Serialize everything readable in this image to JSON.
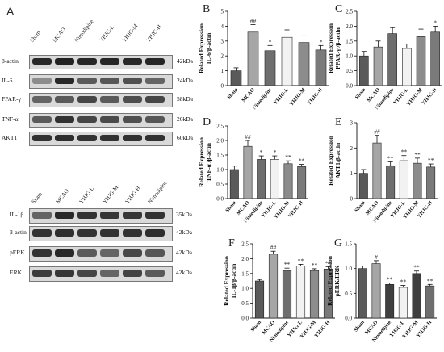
{
  "panel_labels": [
    "A",
    "B",
    "C",
    "D",
    "E",
    "F",
    "G"
  ],
  "blots": [
    {
      "lanes": [
        "Sham",
        "MCAO",
        "Nimodipine",
        "YHJG-L",
        "YHJG-M",
        "YHJG-H"
      ],
      "rows": [
        {
          "protein": "β-actin",
          "kda": "42kDa",
          "intensity": [
            0.85,
            0.88,
            0.86,
            0.86,
            0.85,
            0.86
          ]
        },
        {
          "protein": "IL-6",
          "kda": "24kDa",
          "intensity": [
            0.35,
            0.85,
            0.6,
            0.62,
            0.65,
            0.55
          ]
        },
        {
          "protein": "PPAR-γ",
          "kda": "58kDa",
          "intensity": [
            0.55,
            0.6,
            0.7,
            0.6,
            0.66,
            0.7
          ]
        },
        {
          "protein": "TNF-α",
          "kda": "26kDa",
          "intensity": [
            0.6,
            0.8,
            0.7,
            0.68,
            0.65,
            0.62
          ]
        },
        {
          "protein": "AKT1",
          "kda": "60kDa",
          "intensity": [
            0.8,
            0.82,
            0.8,
            0.8,
            0.8,
            0.8
          ]
        }
      ]
    },
    {
      "lanes": [
        "Sham",
        "MCAO",
        "YHJG-L",
        "YHJG-M",
        "YHJG-H",
        "Nimodipine"
      ],
      "rows": [
        {
          "protein": "IL-1β",
          "kda": "35kDa",
          "intensity": [
            0.55,
            0.85,
            0.8,
            0.78,
            0.78,
            0.8
          ]
        },
        {
          "protein": "β-actin",
          "kda": "42kDa",
          "intensity": [
            0.8,
            0.82,
            0.8,
            0.8,
            0.8,
            0.82
          ]
        },
        {
          "protein": "pERK",
          "kda": "42kDa",
          "intensity": [
            0.8,
            0.85,
            0.6,
            0.55,
            0.7,
            0.62
          ]
        },
        {
          "protein": "ERK",
          "kda": "42kDa",
          "intensity": [
            0.75,
            0.78,
            0.7,
            0.55,
            0.72,
            0.6
          ]
        }
      ]
    }
  ],
  "chart_data": [
    {
      "panel": "B",
      "type": "bar",
      "ylabel": "Related Expression IL-6/β-actin",
      "ylim": [
        0,
        5
      ],
      "ticks": [
        0,
        1,
        2,
        3,
        4,
        5
      ],
      "categories": [
        "Sham",
        "MCAO",
        "Nimodipine",
        "YHJG-L",
        "YHJG-M",
        "YHJG-H"
      ],
      "values": [
        1.0,
        3.6,
        2.35,
        3.25,
        2.9,
        2.4
      ],
      "errors": [
        0.2,
        0.5,
        0.35,
        0.5,
        0.45,
        0.3
      ],
      "annotations": [
        "",
        "##",
        "*",
        "",
        "",
        "*"
      ],
      "colors": [
        "#5a5a5a",
        "#a6a6a6",
        "#6e6e6e",
        "#f2f2f2",
        "#8c8c8c",
        "#7a7a7a"
      ]
    },
    {
      "panel": "C",
      "type": "bar",
      "ylabel": "Related Expression PPAR-γ /β-actin",
      "ylim": [
        0,
        2.5
      ],
      "ticks": [
        0.0,
        0.5,
        1.0,
        1.5,
        2.0,
        2.5
      ],
      "categories": [
        "Sham",
        "MCAO",
        "Nimodipine",
        "YHJG-L",
        "YHJG-M",
        "YHJG-H"
      ],
      "values": [
        1.0,
        1.3,
        1.75,
        1.25,
        1.65,
        1.8
      ],
      "errors": [
        0.15,
        0.2,
        0.2,
        0.15,
        0.25,
        0.2
      ],
      "annotations": [
        "",
        "",
        "",
        "",
        "",
        "*"
      ],
      "colors": [
        "#5a5a5a",
        "#a6a6a6",
        "#6e6e6e",
        "#f2f2f2",
        "#8c8c8c",
        "#7a7a7a"
      ]
    },
    {
      "panel": "D",
      "type": "bar",
      "ylabel": "Related Expression TNF-α /β-actin",
      "ylim": [
        0,
        2.5
      ],
      "ticks": [
        0.0,
        0.5,
        1.0,
        1.5,
        2.0,
        2.5
      ],
      "categories": [
        "Sham",
        "MCAO",
        "Nimodipine",
        "YHJG-L",
        "YHJG-M",
        "YHJG-H"
      ],
      "values": [
        1.0,
        1.8,
        1.35,
        1.35,
        1.2,
        1.1
      ],
      "errors": [
        0.12,
        0.2,
        0.12,
        0.12,
        0.1,
        0.08
      ],
      "annotations": [
        "",
        "##",
        "*",
        "*",
        "**",
        "**"
      ],
      "colors": [
        "#5a5a5a",
        "#a6a6a6",
        "#6e6e6e",
        "#f2f2f2",
        "#8c8c8c",
        "#7a7a7a"
      ]
    },
    {
      "panel": "E",
      "type": "bar",
      "ylabel": "Related Expression AKT1/β-actin",
      "ylim": [
        0,
        3
      ],
      "ticks": [
        0,
        1,
        2,
        3
      ],
      "categories": [
        "Sham",
        "MCAO",
        "Nimodipine",
        "YHJG-L",
        "YHJG-M",
        "YHJG-H"
      ],
      "values": [
        1.0,
        2.2,
        1.3,
        1.5,
        1.4,
        1.25
      ],
      "errors": [
        0.15,
        0.3,
        0.15,
        0.2,
        0.2,
        0.12
      ],
      "annotations": [
        "",
        "##",
        "**",
        "**",
        "**",
        "**"
      ],
      "colors": [
        "#5a5a5a",
        "#a6a6a6",
        "#6e6e6e",
        "#f2f2f2",
        "#8c8c8c",
        "#7a7a7a"
      ]
    },
    {
      "panel": "F",
      "type": "bar",
      "ylabel": "Related Expression IL-1β/β-actin",
      "ylim": [
        0,
        2.5
      ],
      "ticks": [
        0.0,
        0.5,
        1.0,
        1.5,
        2.0,
        2.5
      ],
      "categories": [
        "Sham",
        "MCAO",
        "Nimodipine",
        "YHJG-L",
        "YHJG-M",
        "YHJG-H"
      ],
      "values": [
        1.25,
        2.15,
        1.6,
        1.75,
        1.6,
        1.65
      ],
      "errors": [
        0.05,
        0.1,
        0.08,
        0.06,
        0.06,
        0.08
      ],
      "annotations": [
        "",
        "##",
        "**",
        "**",
        "**",
        "**"
      ],
      "colors": [
        "#5a5a5a",
        "#a6a6a6",
        "#6e6e6e",
        "#f2f2f2",
        "#8c8c8c",
        "#7a7a7a"
      ]
    },
    {
      "panel": "G",
      "type": "bar",
      "ylabel": "Related Expression pERK/ERK",
      "ylim": [
        0,
        1.5
      ],
      "ticks": [
        0.0,
        0.5,
        1.0,
        1.5
      ],
      "categories": [
        "Sham",
        "MCAO",
        "Nimodipine",
        "YHJG-L",
        "YHJG-M",
        "YHJG-H"
      ],
      "values": [
        1.0,
        1.1,
        0.68,
        0.62,
        0.9,
        0.65
      ],
      "errors": [
        0.05,
        0.06,
        0.03,
        0.04,
        0.05,
        0.03
      ],
      "annotations": [
        "",
        "#",
        "**",
        "**",
        "**",
        "**"
      ],
      "colors": [
        "#5a5a5a",
        "#a6a6a6",
        "#3f3f3f",
        "#f2f2f2",
        "#3f3f3f",
        "#6e6e6e"
      ]
    }
  ]
}
